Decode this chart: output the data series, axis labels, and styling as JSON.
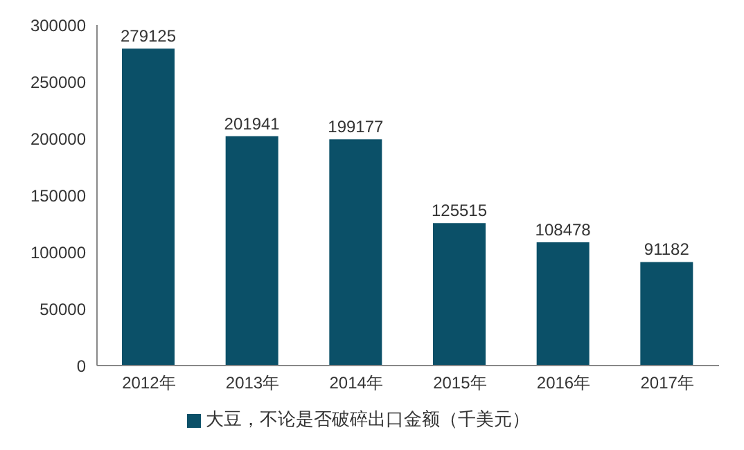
{
  "chart_data": {
    "type": "bar",
    "categories": [
      "2012年",
      "2013年",
      "2014年",
      "2015年",
      "2016年",
      "2017年"
    ],
    "series": [
      {
        "name": "大豆，不论是否破碎出口金额（千美元）",
        "color": "#0b5068",
        "values": [
          279125,
          201941,
          199177,
          125515,
          108478,
          91182
        ]
      }
    ],
    "ylim": [
      0,
      300000
    ],
    "yticks": [
      0,
      50000,
      100000,
      150000,
      200000,
      250000,
      300000
    ],
    "data_labels": true,
    "grid": false,
    "legend": "bottom"
  }
}
